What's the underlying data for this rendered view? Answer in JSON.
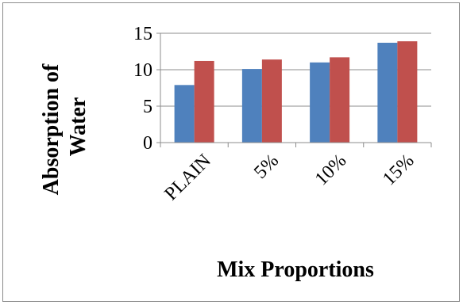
{
  "chart_data": {
    "type": "bar",
    "title": "",
    "xlabel": "Mix Proportions",
    "ylabel": "Absorption of Water",
    "ylabel_lines": [
      "Absorption of",
      "Water"
    ],
    "categories": [
      "PLAIN",
      "5%",
      "10%",
      "15%"
    ],
    "series": [
      {
        "values": [
          7.9,
          10.1,
          11.0,
          13.7
        ],
        "color": "#4f81bd"
      },
      {
        "values": [
          11.2,
          11.4,
          11.7,
          13.9
        ],
        "color": "#c0504d"
      }
    ],
    "ylim": [
      0,
      15
    ],
    "yticks": [
      0,
      5,
      10,
      15
    ],
    "grid": true,
    "legend": "none"
  }
}
